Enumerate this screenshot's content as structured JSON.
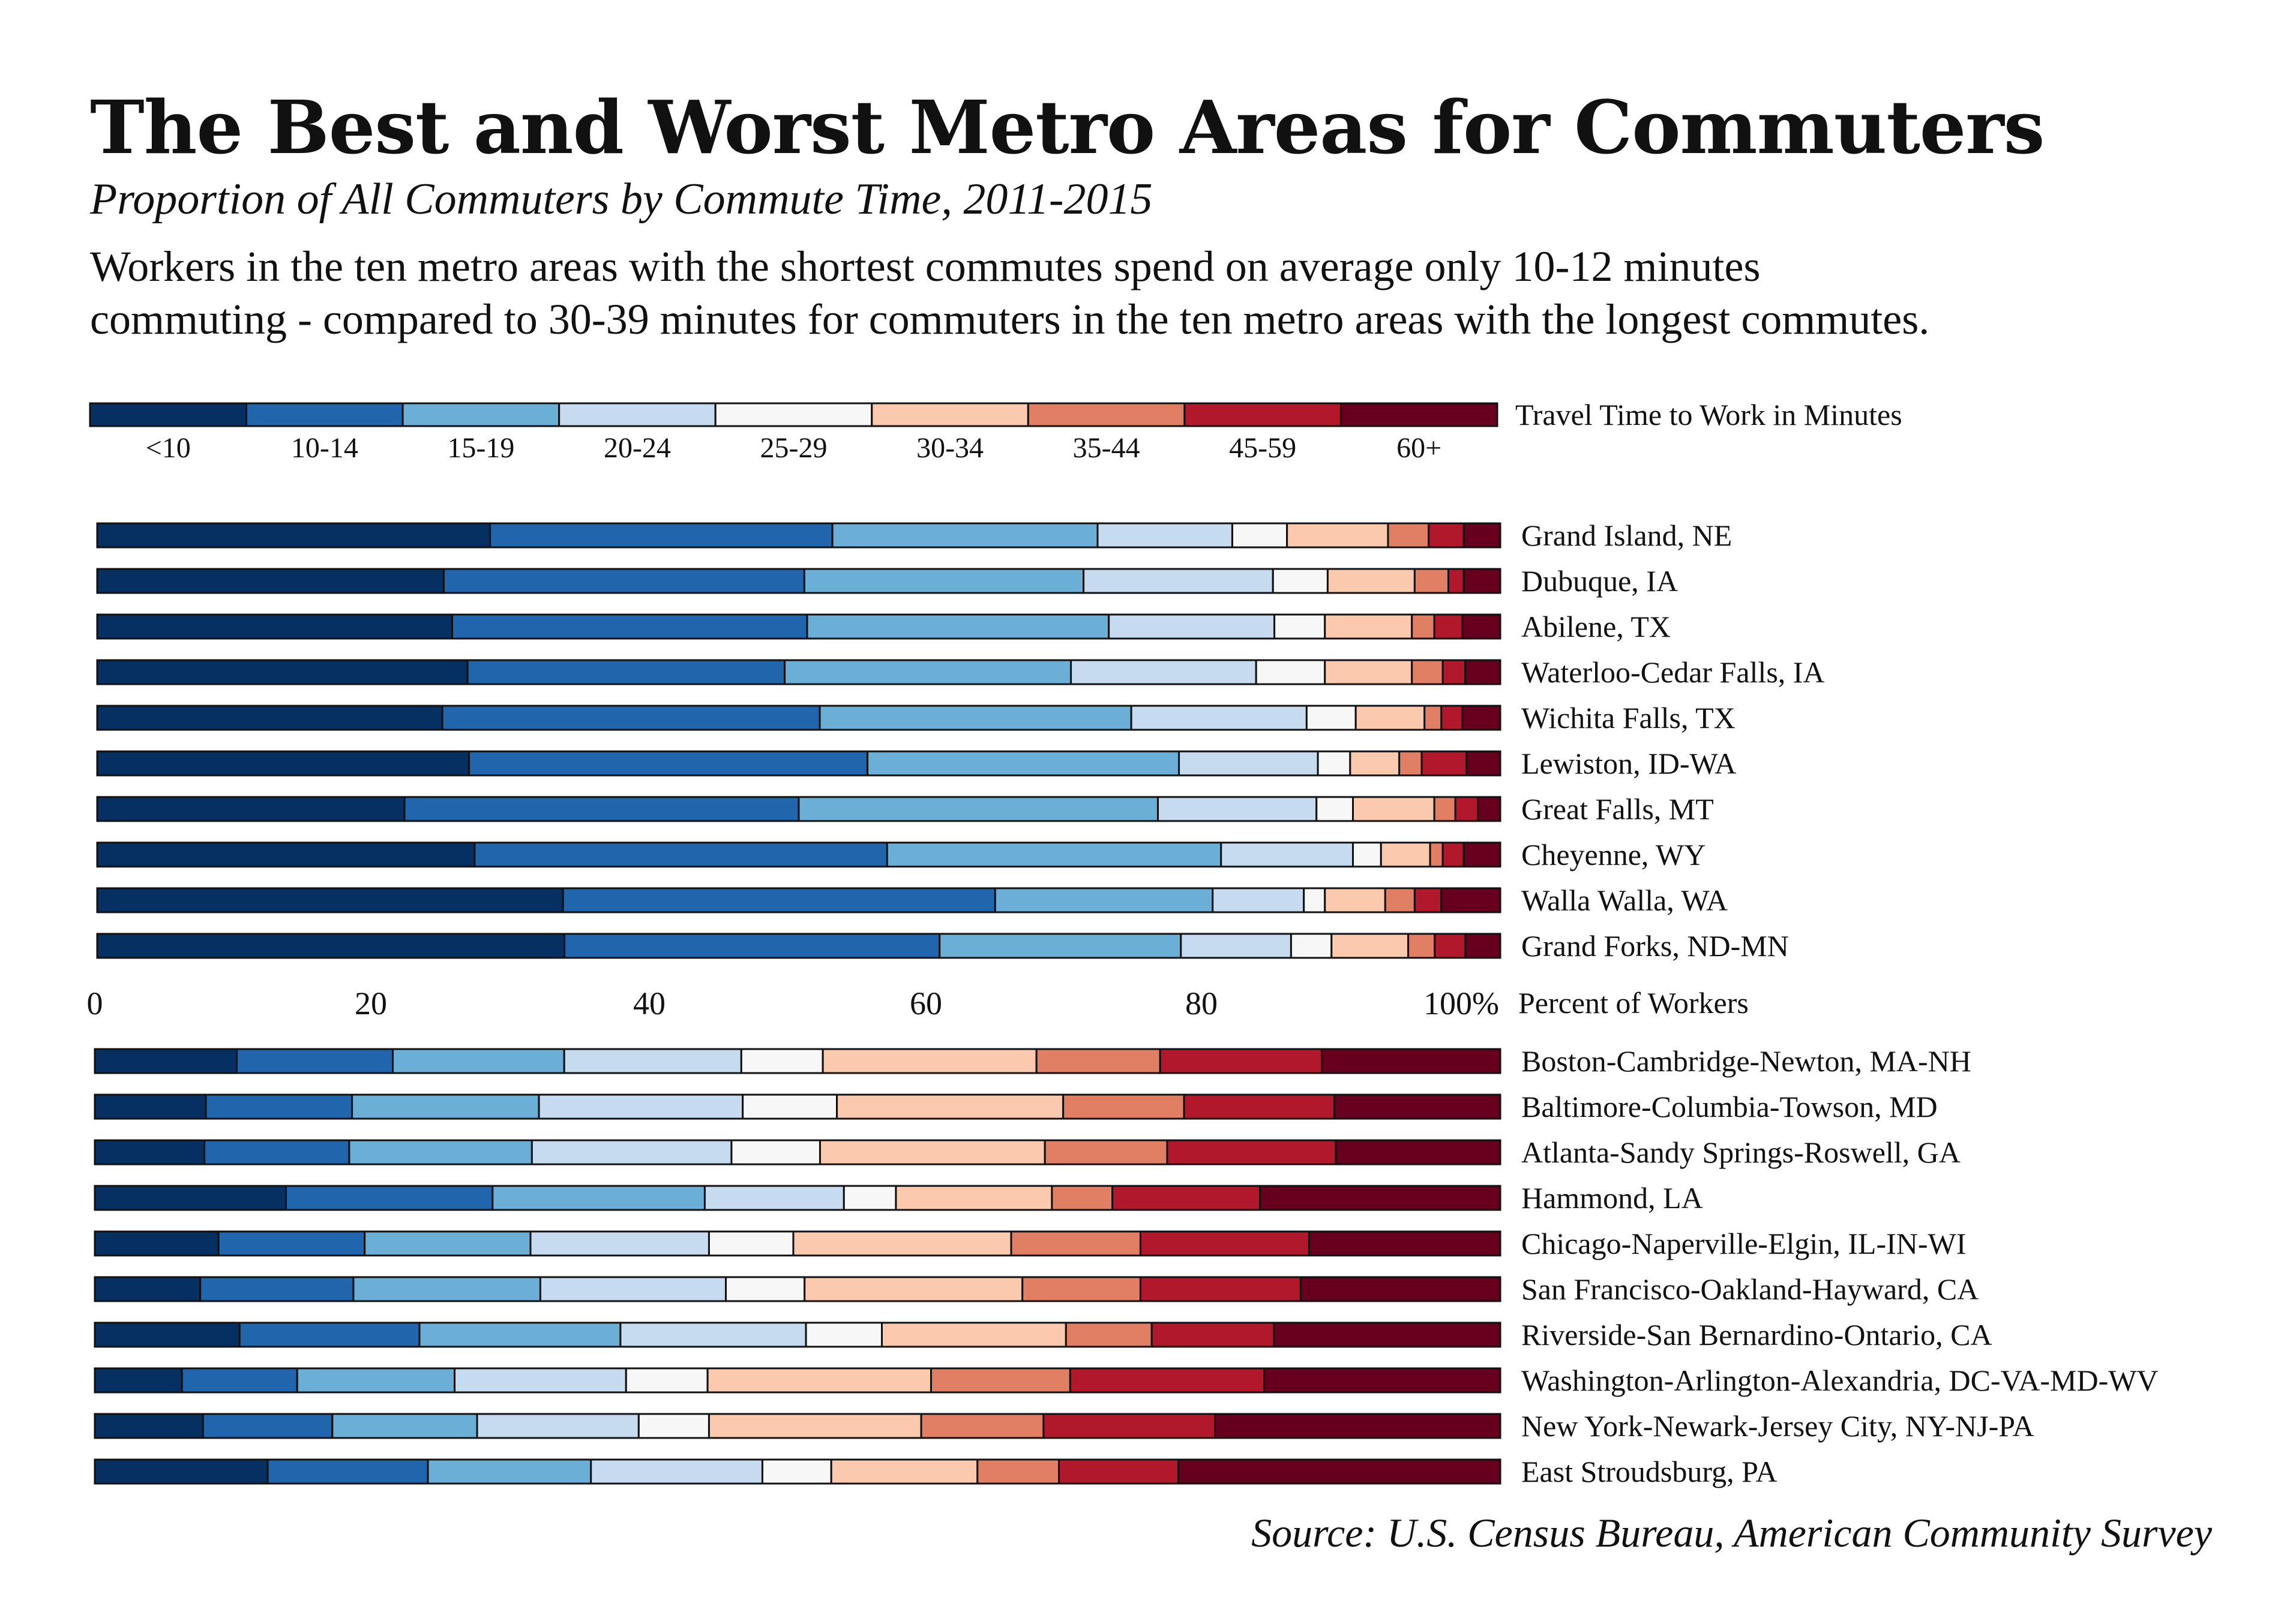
{
  "title": "The Best and Worst Metro Areas for Commuters",
  "subtitle": "Proportion of All Commuters by Commute Time, 2011-2015",
  "description": [
    "Workers in the ten metro areas with the shortest commutes spend on average only 10-12 minutes",
    "commuting - compared to 30-39 minutes for commuters in the ten metro areas with the longest commutes."
  ],
  "source": "Source: U.S. Census Bureau, American Community Survey",
  "legend": {
    "title": "Travel Time to Work in Minutes",
    "categories": [
      "<10",
      "10-14",
      "15-19",
      "20-24",
      "25-29",
      "30-34",
      "35-44",
      "45-59",
      "60+"
    ],
    "colors": [
      "#053061",
      "#2166ac",
      "#6baed6",
      "#c6dbef",
      "#f7f7f7",
      "#fbc9ad",
      "#e07f64",
      "#b2182b",
      "#67001f"
    ]
  },
  "chart_data": [
    {
      "type": "bar",
      "orientation": "horizontal",
      "stacked": true,
      "xlabel": "Percent of Workers",
      "xlim": [
        0,
        100
      ],
      "xticks": [
        "0",
        "20",
        "40",
        "60",
        "80",
        "100%"
      ],
      "categories": [
        "Grand Island, NE",
        "Dubuque, IA",
        "Abilene, TX",
        "Waterloo-Cedar Falls, IA",
        "Wichita Falls, TX",
        "Lewiston, ID-WA",
        "Great Falls, MT",
        "Cheyenne, WY",
        "Walla Walla, WA",
        "Grand Forks, ND-MN"
      ],
      "series": [
        {
          "name": "<10",
          "values": [
            28.0,
            24.7,
            25.3,
            26.4,
            24.6,
            26.5,
            21.9,
            26.9,
            33.2,
            33.5
          ]
        },
        {
          "name": "10-14",
          "values": [
            24.4,
            25.7,
            25.3,
            22.6,
            26.9,
            28.4,
            28.1,
            29.4,
            30.8,
            26.9
          ]
        },
        {
          "name": "15-19",
          "values": [
            18.9,
            19.9,
            21.5,
            20.4,
            22.2,
            22.2,
            25.6,
            23.8,
            15.5,
            17.3
          ]
        },
        {
          "name": "20-24",
          "values": [
            9.6,
            13.5,
            11.8,
            13.2,
            12.5,
            9.9,
            11.3,
            9.4,
            6.5,
            7.9
          ]
        },
        {
          "name": "25-29",
          "values": [
            3.9,
            3.9,
            3.6,
            4.9,
            3.5,
            2.3,
            2.6,
            2.0,
            1.5,
            2.9
          ]
        },
        {
          "name": "30-34",
          "values": [
            7.2,
            6.2,
            6.2,
            6.2,
            4.9,
            3.5,
            5.8,
            3.5,
            4.3,
            5.5
          ]
        },
        {
          "name": "35-44",
          "values": [
            2.9,
            2.4,
            1.6,
            2.2,
            1.2,
            1.6,
            1.5,
            0.9,
            2.1,
            1.9
          ]
        },
        {
          "name": "45-59",
          "values": [
            2.5,
            1.1,
            2.0,
            1.6,
            1.5,
            3.2,
            1.6,
            1.5,
            1.9,
            2.2
          ]
        },
        {
          "name": "60+",
          "values": [
            2.6,
            2.6,
            2.7,
            2.5,
            2.7,
            2.4,
            1.6,
            2.6,
            4.2,
            2.5
          ]
        }
      ]
    },
    {
      "type": "bar",
      "orientation": "horizontal",
      "stacked": true,
      "xlim": [
        0,
        100
      ],
      "categories": [
        "Boston-Cambridge-Newton, MA-NH",
        "Baltimore-Columbia-Towson, MD",
        "Atlanta-Sandy Springs-Roswell, GA",
        "Hammond, LA",
        "Chicago-Naperville-Elgin, IL-IN-WI",
        "San Francisco-Oakland-Hayward, CA",
        "Riverside-San Bernardino-Ontario, CA",
        "Washington-Arlington-Alexandria, DC-VA-MD-WV",
        "New York-Newark-Jersey City, NY-NJ-PA",
        "East Stroudsburg, PA"
      ],
      "series": [
        {
          "name": "<10",
          "values": [
            10.1,
            7.9,
            7.8,
            13.6,
            8.8,
            7.5,
            10.3,
            6.2,
            7.7,
            12.3
          ]
        },
        {
          "name": "10-14",
          "values": [
            11.1,
            10.4,
            10.3,
            14.7,
            10.4,
            10.9,
            12.8,
            8.2,
            9.2,
            11.4
          ]
        },
        {
          "name": "15-19",
          "values": [
            12.2,
            13.3,
            13.0,
            15.1,
            11.8,
            13.3,
            14.3,
            11.2,
            10.3,
            11.6
          ]
        },
        {
          "name": "20-24",
          "values": [
            12.6,
            14.5,
            14.2,
            9.9,
            12.7,
            13.2,
            13.2,
            12.2,
            11.5,
            12.2
          ]
        },
        {
          "name": "25-29",
          "values": [
            5.8,
            6.7,
            6.3,
            3.7,
            6.0,
            5.6,
            5.4,
            5.8,
            5.0,
            4.9
          ]
        },
        {
          "name": "30-34",
          "values": [
            15.2,
            16.1,
            16.0,
            11.1,
            15.5,
            15.5,
            13.1,
            15.9,
            15.1,
            10.4
          ]
        },
        {
          "name": "35-44",
          "values": [
            8.8,
            8.6,
            8.7,
            4.3,
            9.2,
            8.4,
            6.1,
            9.9,
            8.7,
            5.8
          ]
        },
        {
          "name": "45-59",
          "values": [
            11.5,
            10.7,
            12.0,
            10.5,
            12.0,
            11.4,
            8.7,
            13.8,
            12.2,
            8.5
          ]
        },
        {
          "name": "60+",
          "values": [
            12.7,
            11.8,
            11.7,
            17.1,
            13.6,
            14.2,
            16.1,
            16.8,
            20.3,
            22.9
          ]
        }
      ]
    }
  ]
}
